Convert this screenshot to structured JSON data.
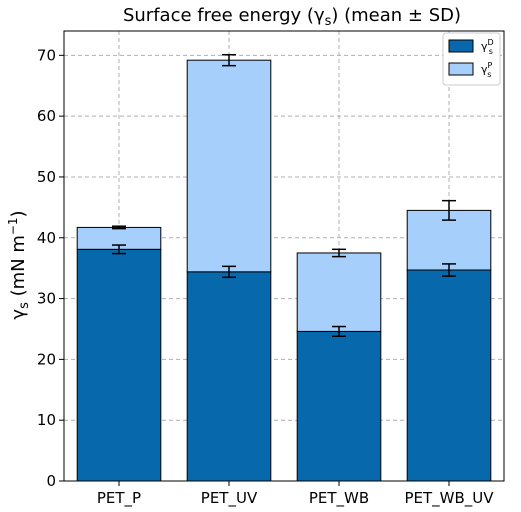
{
  "chart_data": {
    "type": "bar",
    "stacked": true,
    "title": "Surface free energy (γ",
    "title_sub": "s",
    "title_tail": ") (mean ± SD)",
    "ylabel": "γ",
    "ylabel_sub": "s",
    "ylabel_tail": " (mN m",
    "ylabel_sup": "−1",
    "ylabel_close": ")",
    "categories": [
      "PET_P",
      "PET_UV",
      "PET_WB",
      "PET_WB_UV"
    ],
    "ylim": [
      0,
      74
    ],
    "yticks": [
      0,
      10,
      20,
      30,
      40,
      50,
      60,
      70
    ],
    "grid": true,
    "legend_position": "top-right",
    "series": [
      {
        "name": "γ",
        "name_sub": "s",
        "name_sup": "D",
        "color": "#0868ac",
        "values": [
          38.1,
          34.4,
          24.6,
          34.7
        ],
        "errors": [
          0.7,
          0.9,
          0.8,
          1.0
        ]
      },
      {
        "name": "γ",
        "name_sub": "s",
        "name_sup": "P",
        "color": "#a6d0fb",
        "values": [
          3.6,
          34.8,
          12.9,
          9.8
        ],
        "errors": [
          0.2,
          0.9,
          0.6,
          1.6
        ]
      }
    ]
  }
}
